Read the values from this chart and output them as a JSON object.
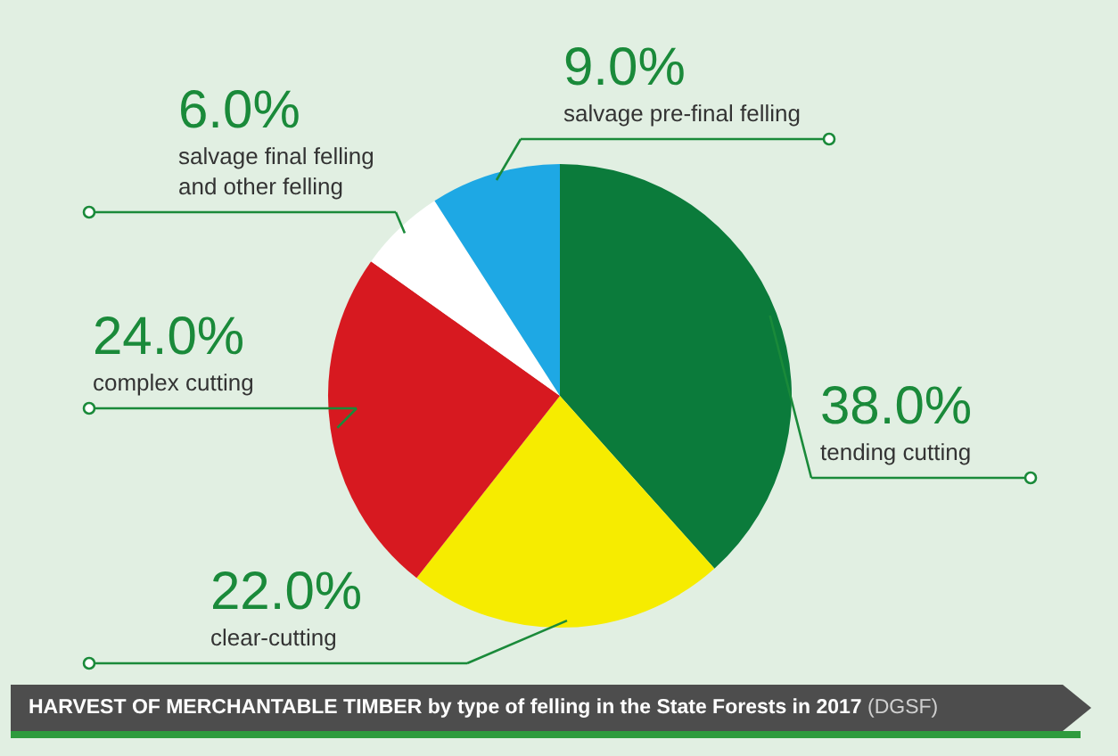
{
  "chart_data": {
    "type": "pie",
    "title": "HARVEST OF MERCHANTABLE TIMBER by type of felling in the State Forests in 2017",
    "subtitle": "(DGSF)",
    "categories": [
      "tending cutting",
      "clear-cutting",
      "complex cutting",
      "salvage final felling and other felling",
      "salvage pre-final felling"
    ],
    "values": [
      38.0,
      22.0,
      24.0,
      6.0,
      9.0
    ],
    "value_labels": [
      "38.0%",
      "22.0%",
      "24.0%",
      "6.0%",
      "9.0%"
    ],
    "colors": [
      "#0b7b3b",
      "#f6ec00",
      "#d71920",
      "#ffffff",
      "#1ea8e4"
    ],
    "legend": false
  }
}
